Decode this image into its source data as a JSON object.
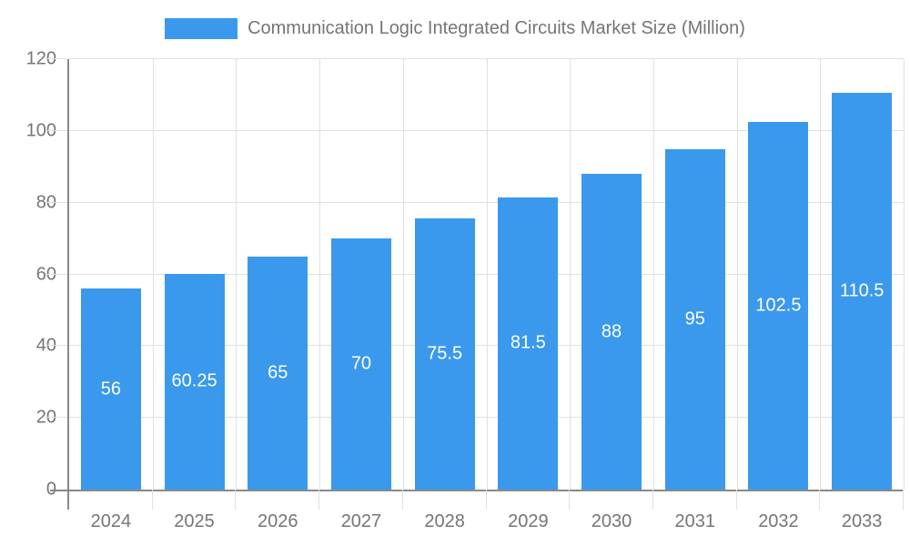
{
  "legend": {
    "swatch_color": "#3A99EC",
    "label": "Communication Logic Integrated Circuits Market Size (Million)"
  },
  "chart_data": {
    "type": "bar",
    "title": "Communication Logic Integrated Circuits Market Size (Million)",
    "categories": [
      "2024",
      "2025",
      "2026",
      "2027",
      "2028",
      "2029",
      "2030",
      "2031",
      "2032",
      "2033"
    ],
    "values": [
      56,
      60.25,
      65,
      70,
      75.5,
      81.5,
      88,
      95,
      102.5,
      110.5
    ],
    "value_labels": [
      "56",
      "60.25",
      "65",
      "70",
      "75.5",
      "81.5",
      "88",
      "95",
      "102.5",
      "110.5"
    ],
    "xlabel": "",
    "ylabel": "",
    "ylim": [
      0,
      120
    ],
    "yticks": [
      0,
      20,
      40,
      60,
      80,
      100,
      120
    ],
    "grid": true,
    "legend_position": "top",
    "bar_color": "#3A99EC",
    "value_label_color": "#FFFFFF"
  },
  "colors": {
    "background": "#FFFFFF",
    "bar": "#3A99EC",
    "axis": "#898989",
    "grid": "#E0E0E0",
    "tick_text": "#757575",
    "value_label": "#FFFFFF"
  }
}
